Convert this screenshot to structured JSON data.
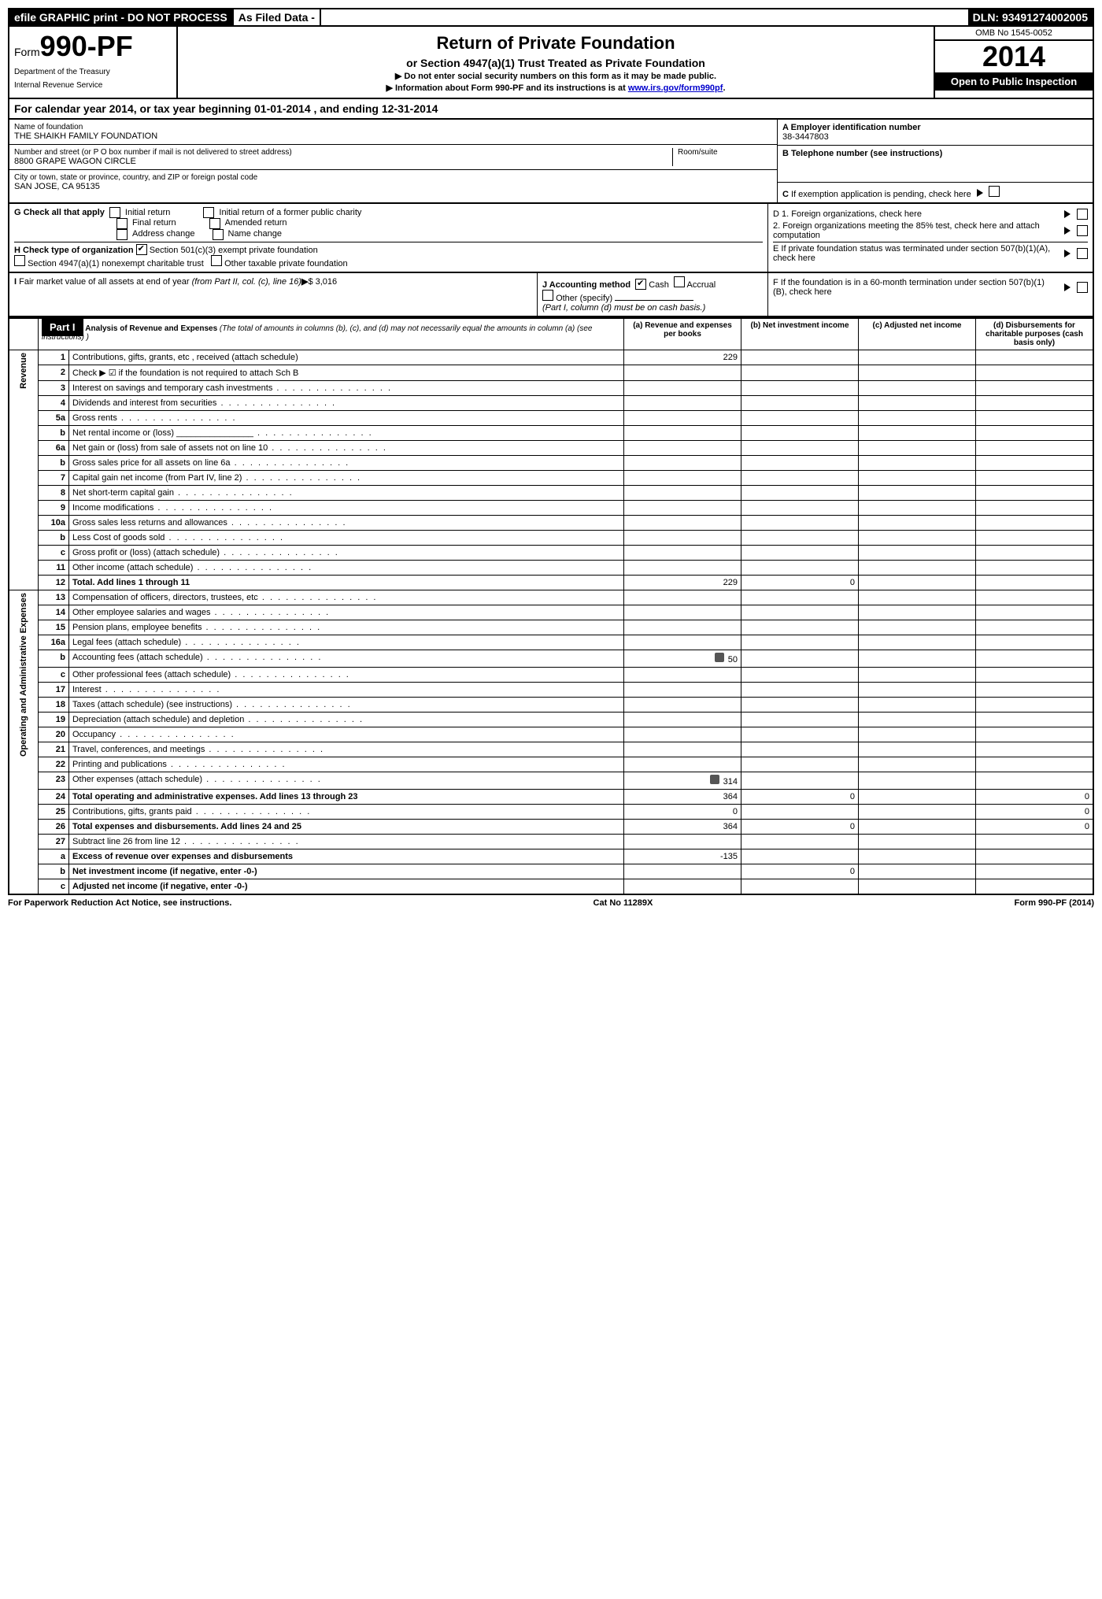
{
  "top": {
    "efile": "efile GRAPHIC print - DO NOT PROCESS",
    "asfiled": "As Filed Data -",
    "dln": "DLN: 93491274002005"
  },
  "header": {
    "form_prefix": "Form",
    "form_no": "990-PF",
    "dept1": "Department of the Treasury",
    "dept2": "Internal Revenue Service",
    "title": "Return of Private Foundation",
    "sub": "or Section 4947(a)(1) Trust Treated as Private Foundation",
    "note1": "▶ Do not enter social security numbers on this form as it may be made public.",
    "note2_pre": "▶ Information about Form 990-PF and its instructions is at ",
    "note2_link": "www.irs.gov/form990pf",
    "omb": "OMB No 1545-0052",
    "year": "2014",
    "open": "Open to Public Inspection"
  },
  "calyear": "For calendar year 2014, or tax year beginning 01-01-2014                         , and ending 12-31-2014",
  "id": {
    "name_lbl": "Name of foundation",
    "name": "THE SHAIKH FAMILY FOUNDATION",
    "addr_lbl": "Number and street (or P O  box number if mail is not delivered to street address)",
    "room_lbl": "Room/suite",
    "addr": "8800 GRAPE WAGON CIRCLE",
    "city_lbl": "City or town, state or province, country, and ZIP or foreign postal code",
    "city": "SAN JOSE, CA  95135",
    "A_lbl": "A Employer identification number",
    "A": "38-3447803",
    "B_lbl": "B Telephone number (see instructions)",
    "C_lbl": "C If exemption application is pending, check here"
  },
  "G": {
    "label": "G Check all that apply",
    "opts": [
      "Initial return",
      "Initial return of a former public charity",
      "Final return",
      "Amended return",
      "Address change",
      "Name change"
    ]
  },
  "H": {
    "label": "H Check type of organization",
    "opt1": "Section 501(c)(3) exempt private foundation",
    "opt2": "Section 4947(a)(1) nonexempt charitable trust",
    "opt3": "Other taxable private foundation"
  },
  "D": {
    "d1": "D 1. Foreign organizations, check here",
    "d2": "2. Foreign organizations meeting the 85% test, check here and attach computation",
    "E": "E  If private foundation status was terminated under section 507(b)(1)(A), check here"
  },
  "I": {
    "label": "I Fair market value of all assets at end of year (from Part II, col. (c), line 16)▶$ 3,016"
  },
  "J": {
    "label": "J Accounting method",
    "cash": "Cash",
    "accrual": "Accrual",
    "other": "Other (specify)",
    "note": "(Part I, column (d) must be on cash basis.)"
  },
  "F": {
    "label": "F  If the foundation is in a 60-month termination under section 507(b)(1)(B), check here"
  },
  "part1": {
    "label": "Part I",
    "title": "Analysis of Revenue and Expenses",
    "title_note": "(The total of amounts in columns (b), (c), and (d) may not necessarily equal the amounts in column (a) (see instructions) )",
    "cols": {
      "a": "(a) Revenue and expenses per books",
      "b": "(b) Net investment income",
      "c": "(c) Adjusted net income",
      "d": "(d) Disbursements for charitable purposes (cash basis only)"
    }
  },
  "side": {
    "rev": "Revenue",
    "exp": "Operating and Administrative Expenses"
  },
  "rows": [
    {
      "n": "1",
      "t": "Contributions, gifts, grants, etc , received (attach schedule)",
      "a": "229"
    },
    {
      "n": "2",
      "t": "Check ▶ ☑ if the foundation is not required to attach Sch B"
    },
    {
      "n": "3",
      "t": "Interest on savings and temporary cash investments"
    },
    {
      "n": "4",
      "t": "Dividends and interest from securities"
    },
    {
      "n": "5a",
      "t": "Gross rents"
    },
    {
      "n": "b",
      "t": "Net rental income or (loss) ________________"
    },
    {
      "n": "6a",
      "t": "Net gain or (loss) from sale of assets not on line 10"
    },
    {
      "n": "b",
      "t": "Gross sales price for all assets on line 6a"
    },
    {
      "n": "7",
      "t": "Capital gain net income (from Part IV, line 2)"
    },
    {
      "n": "8",
      "t": "Net short-term capital gain"
    },
    {
      "n": "9",
      "t": "Income modifications"
    },
    {
      "n": "10a",
      "t": "Gross sales less returns and allowances"
    },
    {
      "n": "b",
      "t": "Less  Cost of goods sold"
    },
    {
      "n": "c",
      "t": "Gross profit or (loss) (attach schedule)"
    },
    {
      "n": "11",
      "t": "Other income (attach schedule)"
    },
    {
      "n": "12",
      "t": "Total. Add lines 1 through 11",
      "a": "229",
      "b": "0",
      "bold": true
    },
    {
      "n": "13",
      "t": "Compensation of officers, directors, trustees, etc"
    },
    {
      "n": "14",
      "t": "Other employee salaries and wages"
    },
    {
      "n": "15",
      "t": "Pension plans, employee benefits"
    },
    {
      "n": "16a",
      "t": "Legal fees (attach schedule)"
    },
    {
      "n": "b",
      "t": "Accounting fees (attach schedule)",
      "a": "50",
      "icon": true
    },
    {
      "n": "c",
      "t": "Other professional fees (attach schedule)"
    },
    {
      "n": "17",
      "t": "Interest"
    },
    {
      "n": "18",
      "t": "Taxes (attach schedule) (see instructions)"
    },
    {
      "n": "19",
      "t": "Depreciation (attach schedule) and depletion"
    },
    {
      "n": "20",
      "t": "Occupancy"
    },
    {
      "n": "21",
      "t": "Travel, conferences, and meetings"
    },
    {
      "n": "22",
      "t": "Printing and publications"
    },
    {
      "n": "23",
      "t": "Other expenses (attach schedule)",
      "a": "314",
      "icon": true
    },
    {
      "n": "24",
      "t": "Total operating and administrative expenses. Add lines 13 through 23",
      "a": "364",
      "b": "0",
      "d": "0",
      "bold": true
    },
    {
      "n": "25",
      "t": "Contributions, gifts, grants paid",
      "a": "0",
      "d": "0"
    },
    {
      "n": "26",
      "t": "Total expenses and disbursements. Add lines 24 and 25",
      "a": "364",
      "b": "0",
      "d": "0",
      "bold": true
    },
    {
      "n": "27",
      "t": "Subtract line 26 from line 12"
    },
    {
      "n": "a",
      "t": "Excess of revenue over expenses and disbursements",
      "a": "-135",
      "bold": true
    },
    {
      "n": "b",
      "t": "Net investment income (if negative, enter -0-)",
      "b": "0",
      "bold": true
    },
    {
      "n": "c",
      "t": "Adjusted net income (if negative, enter -0-)",
      "bold": true
    }
  ],
  "footer": {
    "left": "For Paperwork Reduction Act Notice, see instructions.",
    "mid": "Cat No 11289X",
    "right": "Form 990-PF (2014)"
  }
}
